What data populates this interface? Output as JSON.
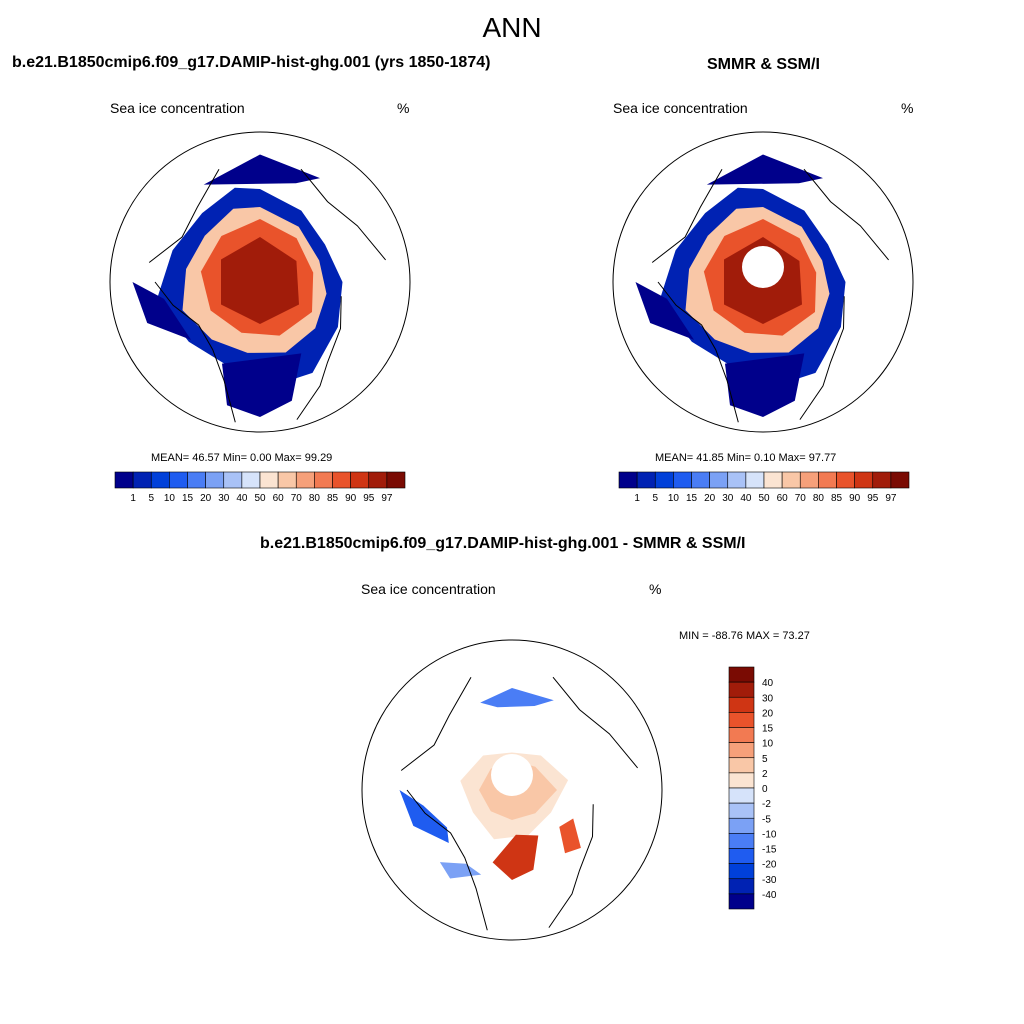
{
  "figure": {
    "title": "ANN"
  },
  "panels": [
    {
      "id": "model",
      "title": "b.e21.B1850cmip6.f09_g17.DAMIP-hist-ghg.001 (yrs 1850-1874)",
      "left_label": "Sea ice concentration",
      "right_label": "%",
      "stats": "MEAN=  46.57  Min=   0.00  Max=  99.29",
      "pole_hole": false
    },
    {
      "id": "obs",
      "title": "SMMR & SSM/I",
      "left_label": "Sea ice concentration",
      "right_label": "%",
      "stats": "MEAN=  41.85  Min=   0.10  Max=  97.77",
      "pole_hole": true
    },
    {
      "id": "diff",
      "title": "b.e21.B1850cmip6.f09_g17.DAMIP-hist-ghg.001 - SMMR & SSM/I",
      "left_label": "Sea ice concentration",
      "right_label": "%",
      "stats": "MIN = -88.76 MAX =  73.27",
      "pole_hole": true
    }
  ],
  "chart_data": [
    {
      "type": "heatmap",
      "panel": "model",
      "projection": "north polar stereographic",
      "variable": "Sea ice concentration",
      "units": "%",
      "mean": 46.57,
      "min": 0.0,
      "max": 99.29,
      "colorbar_levels": [
        "1",
        "5",
        "10",
        "15",
        "20",
        "30",
        "40",
        "50",
        "60",
        "70",
        "80",
        "85",
        "90",
        "95",
        "97"
      ],
      "colorbar_colors": [
        "#00008b",
        "#0022b3",
        "#0040d9",
        "#1f5cf0",
        "#4a7df5",
        "#7ba1f5",
        "#a9c2f7",
        "#d6e3fa",
        "#fbe4d2",
        "#f9c7a7",
        "#f6a07a",
        "#f27a52",
        "#e9532b",
        "#cf3514",
        "#a11c0a",
        "#7a0b03"
      ],
      "colorbar_orientation": "horizontal"
    },
    {
      "type": "heatmap",
      "panel": "obs",
      "projection": "north polar stereographic",
      "variable": "Sea ice concentration",
      "units": "%",
      "mean": 41.85,
      "min": 0.1,
      "max": 97.77,
      "colorbar_levels": [
        "1",
        "5",
        "10",
        "15",
        "20",
        "30",
        "40",
        "50",
        "60",
        "70",
        "80",
        "85",
        "90",
        "95",
        "97"
      ],
      "colorbar_colors": [
        "#00008b",
        "#0022b3",
        "#0040d9",
        "#1f5cf0",
        "#4a7df5",
        "#7ba1f5",
        "#a9c2f7",
        "#d6e3fa",
        "#fbe4d2",
        "#f9c7a7",
        "#f6a07a",
        "#f27a52",
        "#e9532b",
        "#cf3514",
        "#a11c0a",
        "#7a0b03"
      ],
      "colorbar_orientation": "horizontal"
    },
    {
      "type": "heatmap",
      "panel": "diff",
      "projection": "north polar stereographic",
      "variable": "Sea ice concentration",
      "units": "%",
      "min": -88.76,
      "max": 73.27,
      "colorbar_levels": [
        "40",
        "30",
        "20",
        "15",
        "10",
        "5",
        "2",
        "0",
        "-2",
        "-5",
        "-10",
        "-15",
        "-20",
        "-30",
        "-40"
      ],
      "colorbar_colors": [
        "#7a0b03",
        "#a11c0a",
        "#cf3514",
        "#e9532b",
        "#f27a52",
        "#f6a07a",
        "#f9c7a7",
        "#fbe4d2",
        "#d6e3fa",
        "#a9c2f7",
        "#7ba1f5",
        "#4a7df5",
        "#1f5cf0",
        "#0040d9",
        "#0022b3",
        "#00008b"
      ],
      "colorbar_orientation": "vertical"
    }
  ]
}
